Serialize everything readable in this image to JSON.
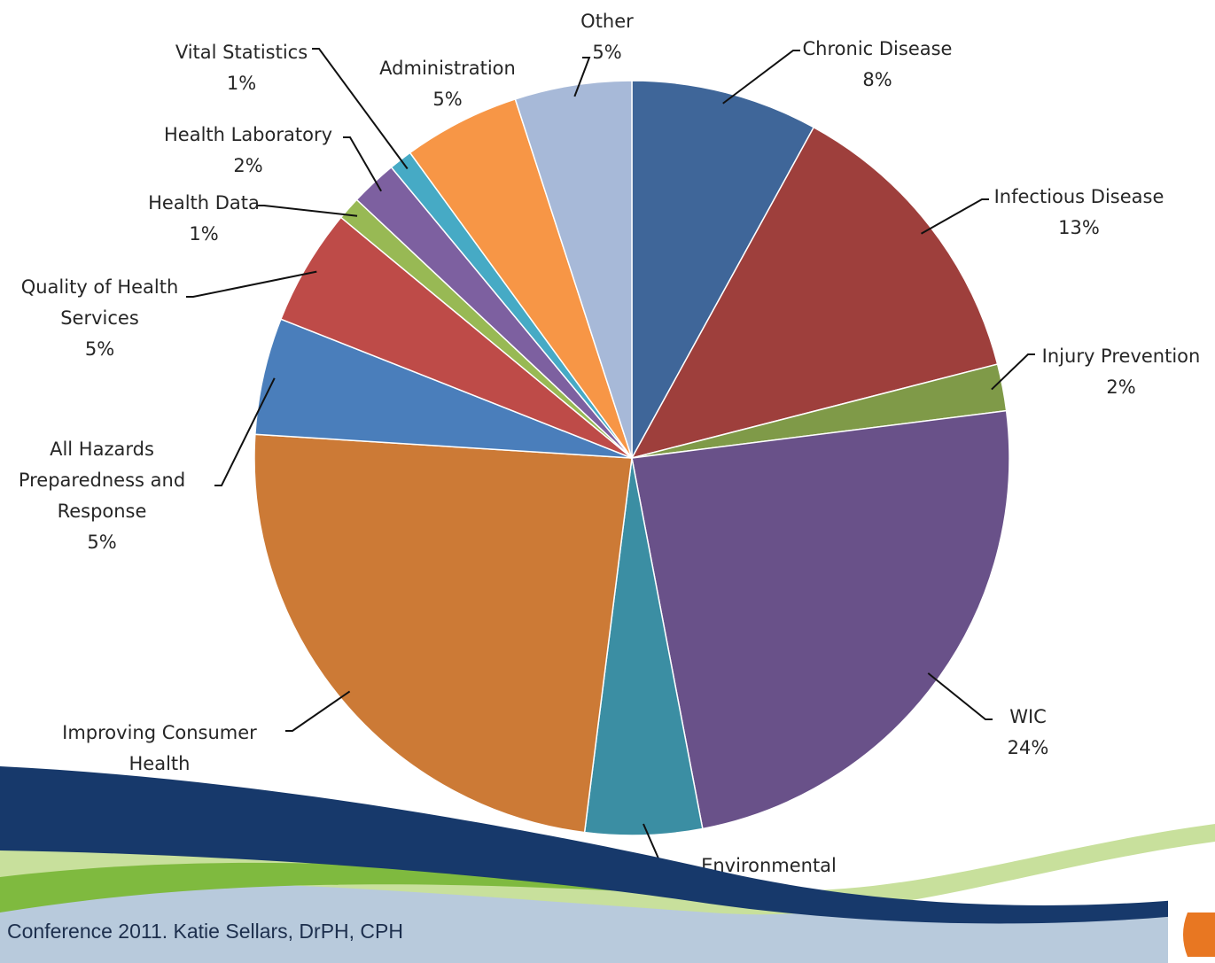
{
  "chart_data": {
    "type": "pie",
    "categories": [
      "Chronic Disease",
      "Infectious Disease",
      "Injury Prevention",
      "WIC",
      "Environmental Protection",
      "Improving Consumer Health",
      "All Hazards Preparedness and Response",
      "Quality of Health Services",
      "Health Data",
      "Health Laboratory",
      "Vital Statistics",
      "Administration",
      "Other"
    ],
    "values": [
      8,
      13,
      2,
      24,
      5,
      24,
      5,
      5,
      1,
      2,
      1,
      5,
      5
    ],
    "value_labels": [
      "8%",
      "13%",
      "2%",
      "24%",
      "5%",
      "24%",
      "5%",
      "5%",
      "1%",
      "2%",
      "1%",
      "5%",
      "5%"
    ],
    "colors": [
      "#3f6699",
      "#9e3f3c",
      "#7f9a48",
      "#695189",
      "#3b8ea3",
      "#cc7a36",
      "#4a7ebb",
      "#be4b48",
      "#98b954",
      "#7d60a0",
      "#46aac5",
      "#f79646",
      "#a7b9d8"
    ]
  },
  "footer": "Conference 2011. Katie Sellars, DrPH, CPH"
}
